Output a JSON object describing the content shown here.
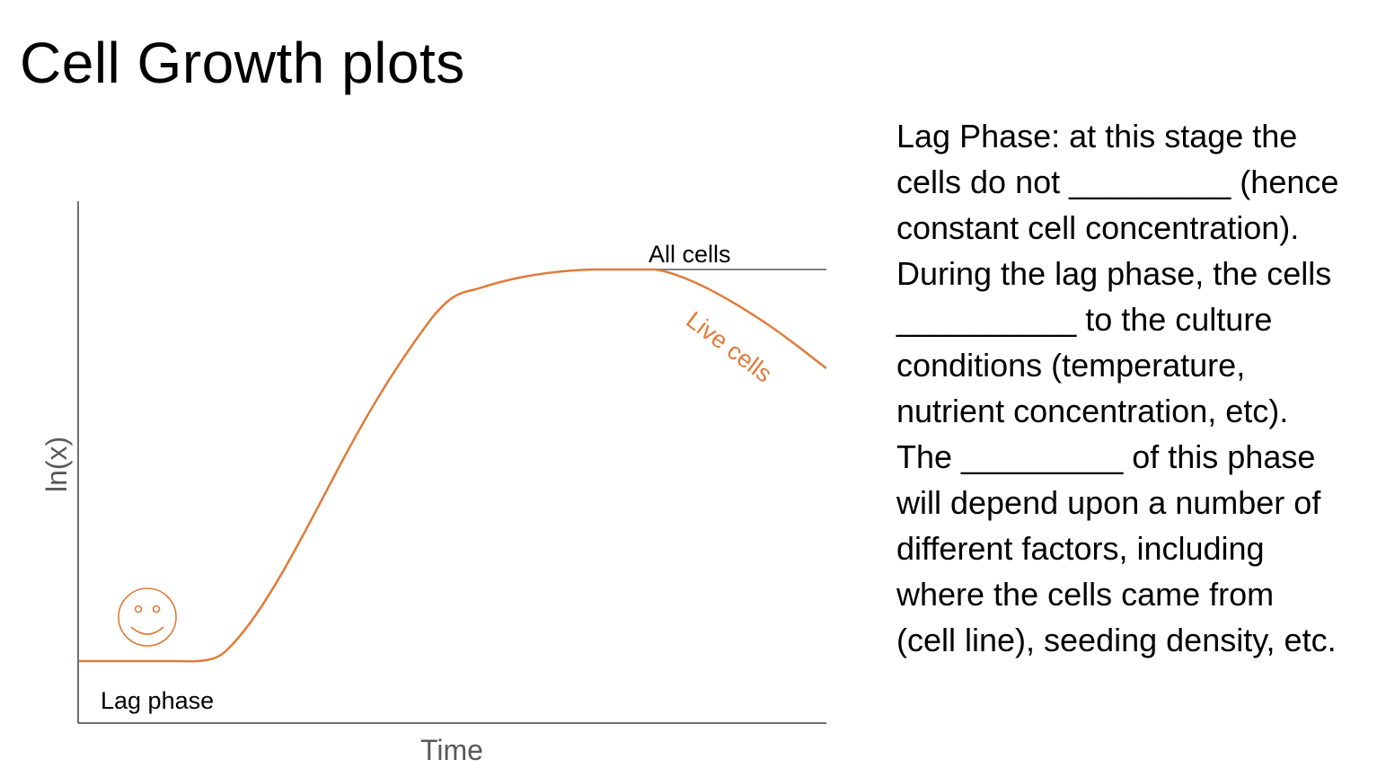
{
  "slide": {
    "title": "Cell Growth plots"
  },
  "diagram": {
    "y_axis_label": "ln(x)",
    "x_axis_label": "Time",
    "all_cells_label": "All cells",
    "live_cells_label": "Live cells",
    "lag_phase_label": "Lag phase",
    "colors": {
      "live_cells_curve": "#E07B39",
      "all_cells_line": "#808080",
      "axes": "#404040",
      "axis_labels": "#595959"
    },
    "icon": "smiley-face-icon"
  },
  "notes": {
    "lines": [
      "Lag Phase: at this stage the",
      "cells do not _________ (hence",
      "constant cell concentration).",
      "During the lag phase, the cells",
      "__________ to the culture",
      "conditions (temperature,",
      "nutrient concentration, etc).",
      "The _________ of this phase",
      "will depend upon a number of",
      "different factors, including",
      "where the cells came from",
      "(cell line), seeding density, etc."
    ]
  }
}
